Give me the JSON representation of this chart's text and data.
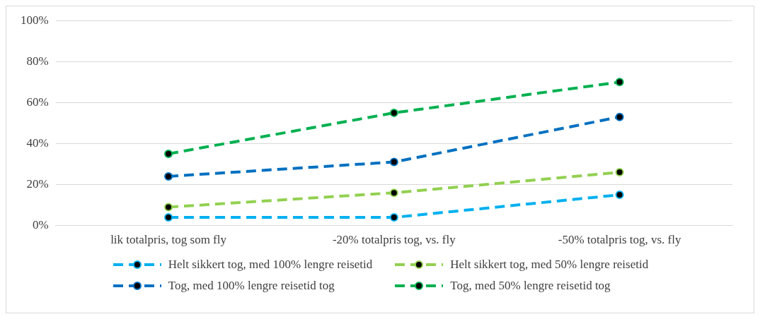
{
  "chart_data": {
    "type": "line",
    "categories": [
      "lik totalpris, tog som fly",
      "-20% totalpris tog, vs. fly",
      "-50% totalpris tog, vs. fly"
    ],
    "series": [
      {
        "name": "Helt sikkert tog, med 100% lengre reisetid",
        "color": "#00b0f0",
        "values": [
          4,
          4,
          15
        ]
      },
      {
        "name": "Helt sikkert tog, med 50% lengre reisetid",
        "color": "#92d050",
        "values": [
          9,
          16,
          26
        ]
      },
      {
        "name": "Tog, med 100% lengre reisetid tog",
        "color": "#0070c0",
        "values": [
          24,
          31,
          53
        ]
      },
      {
        "name": "Tog, med 50% lengre reisetid tog",
        "color": "#00b050",
        "values": [
          35,
          55,
          70
        ]
      }
    ],
    "ylim": [
      0,
      100
    ],
    "yticks": [
      {
        "value": 0,
        "label": "0%"
      },
      {
        "value": 20,
        "label": "20%"
      },
      {
        "value": 40,
        "label": "40%"
      },
      {
        "value": 60,
        "label": "60%"
      },
      {
        "value": 80,
        "label": "80%"
      },
      {
        "value": 100,
        "label": "100%"
      }
    ],
    "grid": "y",
    "legend": "bottom",
    "marker": "circle",
    "line_style": "dashed"
  }
}
